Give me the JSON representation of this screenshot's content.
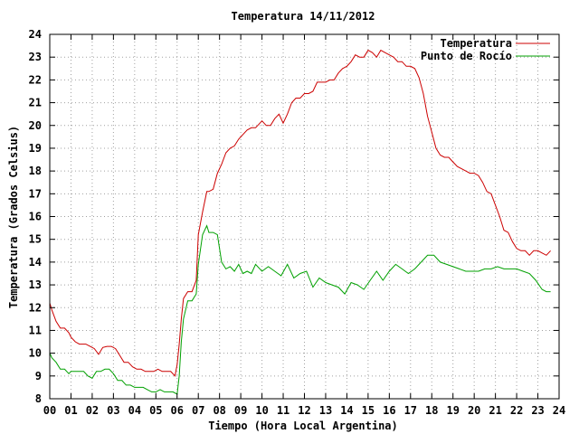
{
  "chart_data": {
    "type": "line",
    "title": "Temperatura 14/11/2012",
    "xlabel": "Tiempo (Hora Local Argentina)",
    "ylabel": "Temperatura (Grados Celsius)",
    "xlim": [
      0,
      24
    ],
    "ylim": [
      8,
      24
    ],
    "grid": true,
    "legend_position": "top-right",
    "x_tick_labels": [
      "00",
      "01",
      "02",
      "03",
      "04",
      "05",
      "06",
      "07",
      "08",
      "09",
      "10",
      "11",
      "12",
      "13",
      "14",
      "15",
      "16",
      "17",
      "18",
      "19",
      "20",
      "21",
      "22",
      "23",
      "24"
    ],
    "y_tick_labels": [
      "8",
      "9",
      "10",
      "11",
      "12",
      "13",
      "14",
      "15",
      "16",
      "17",
      "18",
      "19",
      "20",
      "21",
      "22",
      "23",
      "24"
    ],
    "series": [
      {
        "name": "Temperatura",
        "color": "#cc0000",
        "x": [
          0.0,
          0.1,
          0.3,
          0.5,
          0.7,
          0.9,
          1.0,
          1.2,
          1.4,
          1.5,
          1.7,
          1.9,
          2.1,
          2.3,
          2.5,
          2.7,
          2.9,
          3.1,
          3.3,
          3.5,
          3.7,
          3.9,
          4.1,
          4.3,
          4.5,
          4.7,
          4.9,
          5.1,
          5.3,
          5.5,
          5.7,
          5.9,
          6.0,
          6.1,
          6.2,
          6.3,
          6.5,
          6.7,
          6.9,
          7.0,
          7.2,
          7.4,
          7.5,
          7.7,
          7.9,
          8.1,
          8.3,
          8.5,
          8.7,
          8.9,
          9.1,
          9.3,
          9.5,
          9.7,
          10.0,
          10.2,
          10.4,
          10.6,
          10.8,
          11.0,
          11.2,
          11.4,
          11.6,
          11.8,
          12.0,
          12.2,
          12.4,
          12.6,
          12.8,
          13.0,
          13.2,
          13.4,
          13.6,
          13.8,
          14.0,
          14.2,
          14.4,
          14.6,
          14.8,
          15.0,
          15.2,
          15.4,
          15.6,
          15.8,
          16.0,
          16.2,
          16.4,
          16.6,
          16.8,
          17.0,
          17.2,
          17.4,
          17.6,
          17.8,
          18.0,
          18.2,
          18.4,
          18.6,
          18.8,
          19.0,
          19.2,
          19.4,
          19.6,
          19.8,
          20.0,
          20.2,
          20.4,
          20.6,
          20.8,
          21.0,
          21.2,
          21.4,
          21.6,
          21.8,
          22.0,
          22.2,
          22.4,
          22.6,
          22.8,
          23.0,
          23.2,
          23.4,
          23.6
        ],
        "values": [
          12.2,
          11.9,
          11.4,
          11.1,
          11.1,
          10.9,
          10.7,
          10.5,
          10.4,
          10.4,
          10.4,
          10.3,
          10.2,
          9.95,
          10.25,
          10.3,
          10.3,
          10.2,
          9.9,
          9.6,
          9.6,
          9.4,
          9.3,
          9.3,
          9.2,
          9.2,
          9.2,
          9.3,
          9.2,
          9.2,
          9.2,
          9.0,
          9.5,
          10.4,
          11.5,
          12.4,
          12.7,
          12.7,
          13.2,
          15.2,
          16.2,
          17.1,
          17.1,
          17.2,
          17.9,
          18.3,
          18.8,
          19.0,
          19.1,
          19.4,
          19.6,
          19.8,
          19.9,
          19.9,
          20.2,
          20.0,
          20.0,
          20.3,
          20.5,
          20.1,
          20.5,
          21.0,
          21.2,
          21.2,
          21.4,
          21.4,
          21.5,
          21.9,
          21.9,
          21.9,
          22.0,
          22.0,
          22.3,
          22.5,
          22.6,
          22.8,
          23.1,
          23.0,
          23.0,
          23.3,
          23.2,
          23.0,
          23.3,
          23.2,
          23.1,
          23.0,
          22.8,
          22.8,
          22.6,
          22.6,
          22.5,
          22.1,
          21.4,
          20.4,
          19.7,
          19.0,
          18.7,
          18.6,
          18.6,
          18.4,
          18.2,
          18.1,
          18.0,
          17.9,
          17.9,
          17.8,
          17.5,
          17.1,
          17.0,
          16.5,
          16.0,
          15.4,
          15.3,
          14.9,
          14.6,
          14.5,
          14.5,
          14.3,
          14.5,
          14.5,
          14.4,
          14.3,
          14.5
        ],
        "values_note_removed": true
      },
      {
        "name": "Punto de Rocío",
        "color": "#00a000",
        "x": [
          0.0,
          0.1,
          0.3,
          0.5,
          0.7,
          0.9,
          1.0,
          1.2,
          1.4,
          1.6,
          1.8,
          2.0,
          2.2,
          2.4,
          2.6,
          2.8,
          3.0,
          3.2,
          3.4,
          3.6,
          3.8,
          4.0,
          4.2,
          4.4,
          4.6,
          4.8,
          5.0,
          5.2,
          5.4,
          5.6,
          5.8,
          6.0,
          6.1,
          6.2,
          6.3,
          6.5,
          6.7,
          6.9,
          7.0,
          7.2,
          7.4,
          7.5,
          7.7,
          7.9,
          8.1,
          8.3,
          8.5,
          8.7,
          8.9,
          9.1,
          9.3,
          9.5,
          9.7,
          10.0,
          10.3,
          10.6,
          10.9,
          11.2,
          11.5,
          11.8,
          12.1,
          12.4,
          12.7,
          13.0,
          13.3,
          13.6,
          13.9,
          14.2,
          14.5,
          14.8,
          15.1,
          15.4,
          15.7,
          16.0,
          16.3,
          16.6,
          16.9,
          17.2,
          17.5,
          17.8,
          18.1,
          18.4,
          18.7,
          19.0,
          19.3,
          19.6,
          19.9,
          20.2,
          20.5,
          20.8,
          21.1,
          21.4,
          21.7,
          22.0,
          22.3,
          22.6,
          22.9,
          23.2,
          23.4,
          23.6
        ],
        "values": [
          10.0,
          9.8,
          9.6,
          9.3,
          9.3,
          9.1,
          9.2,
          9.2,
          9.2,
          9.2,
          9.0,
          8.9,
          9.2,
          9.2,
          9.3,
          9.3,
          9.1,
          8.8,
          8.8,
          8.6,
          8.6,
          8.5,
          8.5,
          8.5,
          8.4,
          8.3,
          8.3,
          8.4,
          8.3,
          8.3,
          8.3,
          8.2,
          9.0,
          10.5,
          11.5,
          12.3,
          12.3,
          12.6,
          13.9,
          15.2,
          15.6,
          15.3,
          15.3,
          15.2,
          14.0,
          13.7,
          13.8,
          13.6,
          13.9,
          13.5,
          13.6,
          13.5,
          13.9,
          13.6,
          13.8,
          13.6,
          13.4,
          13.9,
          13.3,
          13.5,
          13.6,
          12.9,
          13.3,
          13.1,
          13.0,
          12.9,
          12.6,
          13.1,
          13.0,
          12.8,
          13.2,
          13.6,
          13.2,
          13.6,
          13.9,
          13.7,
          13.5,
          13.7,
          14.0,
          14.3,
          14.3,
          14.0,
          13.9,
          13.8,
          13.7,
          13.6,
          13.6,
          13.6,
          13.7,
          13.7,
          13.8,
          13.7,
          13.7,
          13.7,
          13.6,
          13.5,
          13.2,
          12.8,
          12.7,
          12.7
        ]
      }
    ]
  }
}
